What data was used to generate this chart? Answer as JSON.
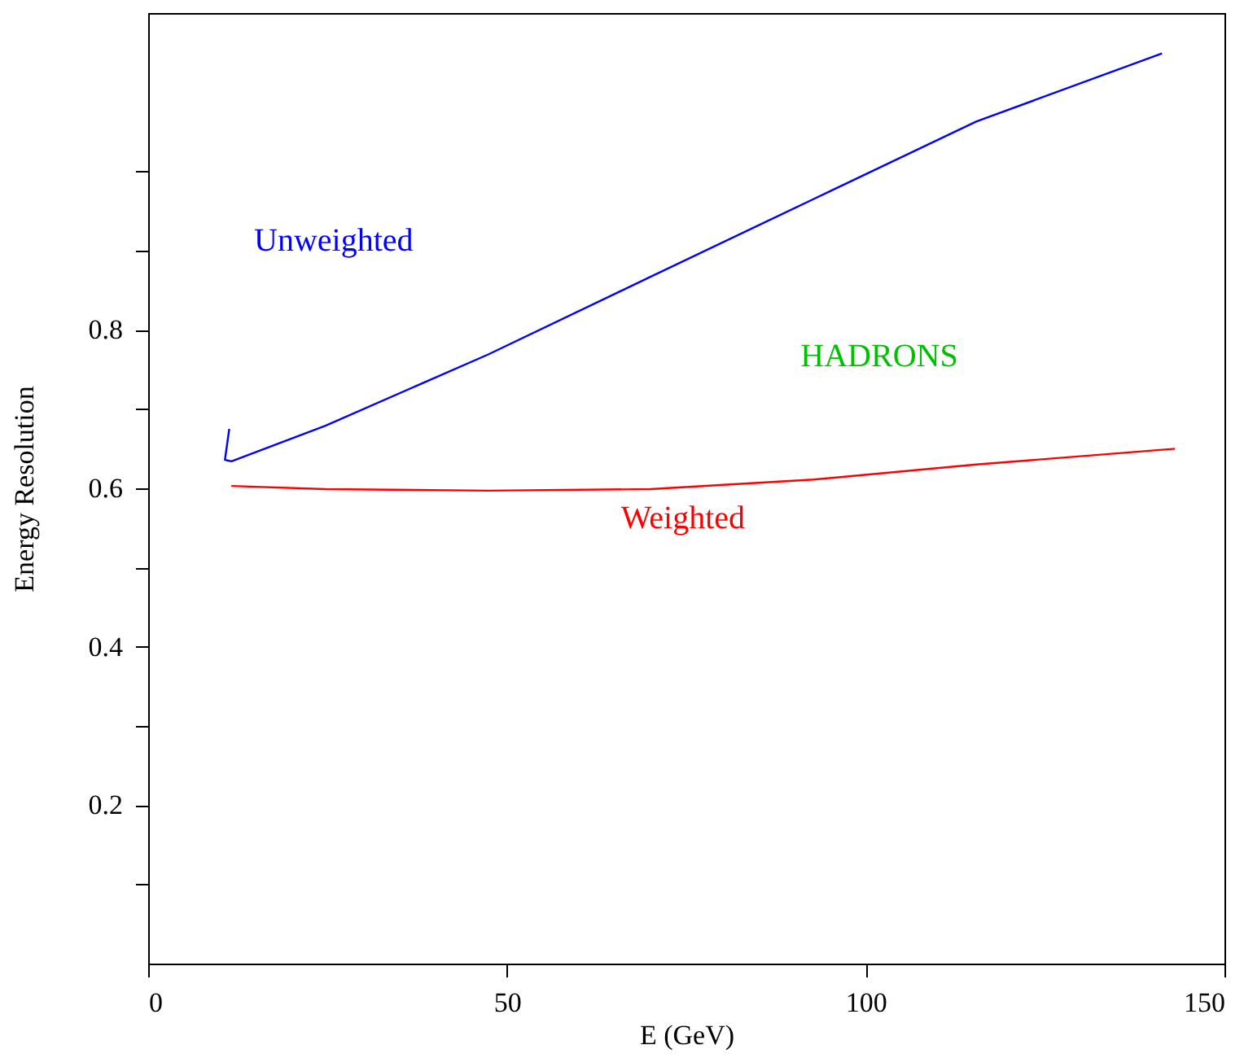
{
  "chart_data": {
    "type": "line",
    "xlabel": "E  (GeV)",
    "ylabel": "Energy Resolution",
    "xlim": [
      0,
      150
    ],
    "ylim": [
      0,
      1.2
    ],
    "xticks": [
      0,
      50,
      100,
      150
    ],
    "yticks": [
      {
        "value": 0.1,
        "label": null
      },
      0.2,
      {
        "value": 0.3,
        "label": null
      },
      0.4,
      {
        "value": 0.5,
        "label": null
      },
      0.6,
      {
        "value": 0.7,
        "label": null
      },
      0.8,
      {
        "value": 0.9,
        "label": null
      },
      {
        "value": 1.0,
        "label": null
      }
    ],
    "grid": false,
    "series": [
      {
        "name": "Unweighted",
        "color": "#0000ff",
        "x": [
          11.3,
          10.7,
          11.6,
          24.7,
          47.4,
          70,
          92.7,
          115.4,
          141.3
        ],
        "values": [
          0.675,
          0.636,
          0.634,
          0.679,
          0.769,
          0.867,
          0.965,
          1.063,
          1.149
        ]
      },
      {
        "name": "Weighted",
        "color": "#ff0000",
        "x": [
          11.6,
          24.7,
          47.4,
          70,
          92.7,
          115.4,
          143.1
        ],
        "values": [
          0.603,
          0.599,
          0.597,
          0.599,
          0.611,
          0.63,
          0.65
        ]
      }
    ],
    "annotations": [
      "HADRONS"
    ]
  }
}
